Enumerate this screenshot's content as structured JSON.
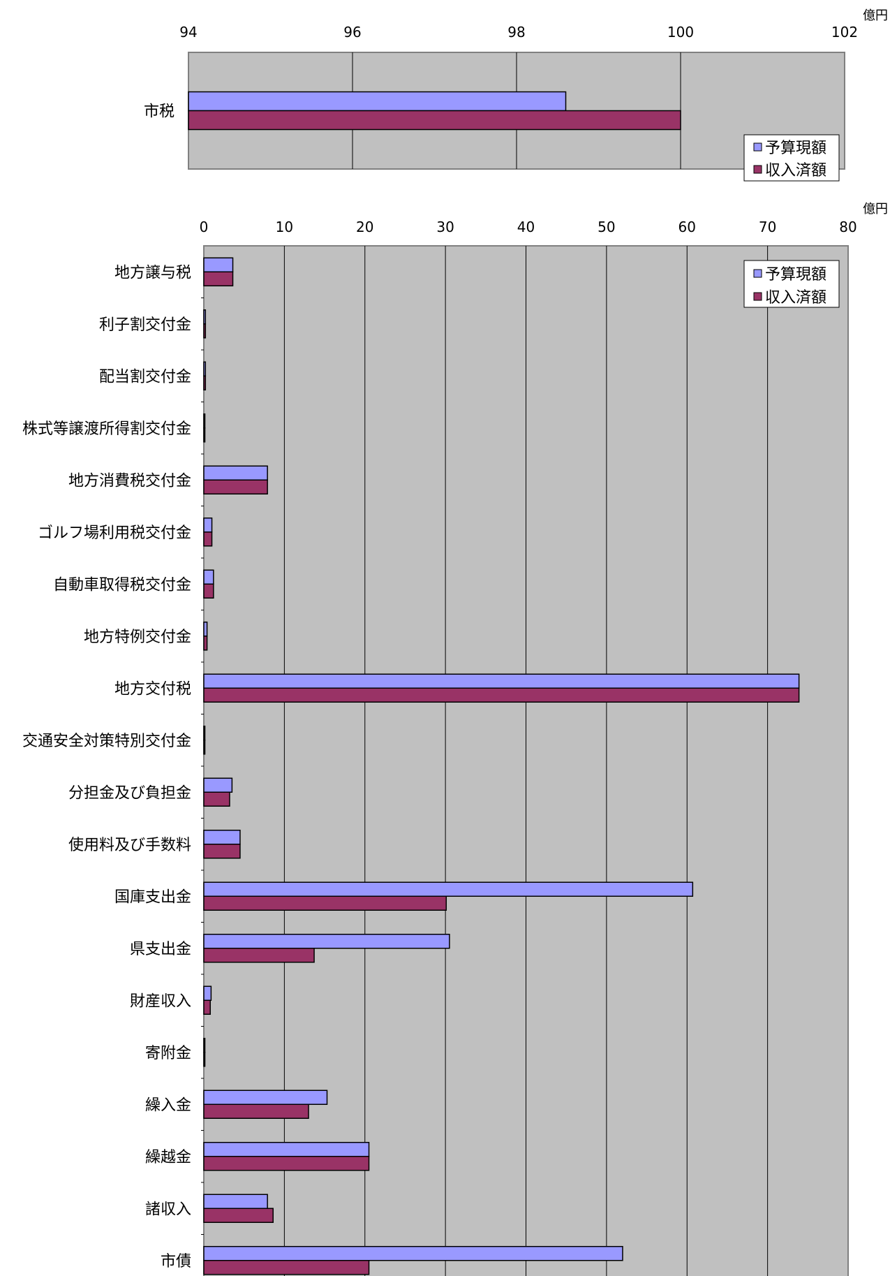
{
  "chart_data": [
    {
      "type": "bar",
      "orientation": "horizontal",
      "unit": "億円",
      "xlim": [
        94,
        102
      ],
      "xticks": [
        94,
        96,
        98,
        100,
        102
      ],
      "grid": true,
      "legend_position": "bottom-right",
      "categories": [
        "市税"
      ],
      "series": [
        {
          "name": "予算現額",
          "color": "#9999ff",
          "values": [
            98.6
          ]
        },
        {
          "name": "収入済額",
          "color": "#993366",
          "values": [
            100.0
          ]
        }
      ]
    },
    {
      "type": "bar",
      "orientation": "horizontal",
      "unit": "億円",
      "xlim": [
        0,
        80
      ],
      "xticks": [
        0,
        10,
        20,
        30,
        40,
        50,
        60,
        70,
        80
      ],
      "grid": true,
      "legend_position": "top-right",
      "categories": [
        "地方譲与税",
        "利子割交付金",
        "配当割交付金",
        "株式等譲渡所得割交付金",
        "地方消費税交付金",
        "ゴルフ場利用税交付金",
        "自動車取得税交付金",
        "地方特例交付金",
        "地方交付税",
        "交通安全対策特別交付金",
        "分担金及び負担金",
        "使用料及び手数料",
        "国庫支出金",
        "県支出金",
        "財産収入",
        "寄附金",
        "繰入金",
        "繰越金",
        "諸収入",
        "市債"
      ],
      "series": [
        {
          "name": "予算現額",
          "color": "#9999ff",
          "values": [
            3.6,
            0.2,
            0.2,
            0.1,
            7.9,
            1.0,
            1.2,
            0.4,
            73.9,
            0.1,
            3.5,
            4.5,
            60.7,
            30.5,
            0.9,
            0.1,
            15.3,
            20.5,
            7.9,
            52.0
          ]
        },
        {
          "name": "収入済額",
          "color": "#993366",
          "values": [
            3.6,
            0.2,
            0.2,
            0.1,
            7.9,
            1.0,
            1.2,
            0.4,
            73.9,
            0.1,
            3.2,
            4.5,
            30.1,
            13.7,
            0.8,
            0.1,
            13.0,
            20.5,
            8.6,
            20.5
          ]
        }
      ]
    }
  ]
}
